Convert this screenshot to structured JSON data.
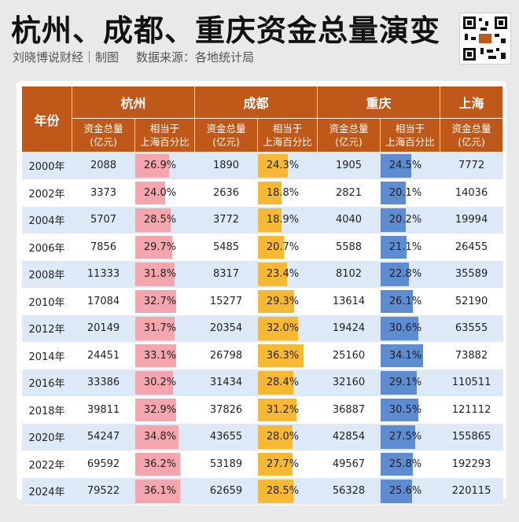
{
  "header": {
    "title": "杭州、成都、重庆资金总量演变",
    "source_author": "刘晓博说财经｜制图",
    "source": "数据来源：各地统计局"
  },
  "table": {
    "col_year": "年份",
    "cities": [
      "杭州",
      "成都",
      "重庆",
      "上海"
    ],
    "sub_value": "资金总量\n(亿元)",
    "sub_pct": "相当于\n上海百分比"
  },
  "colors": {
    "header": "#c0581a",
    "hangzhou": "#f3a6ad",
    "chengdu": "#f7b834",
    "chongqing": "#5d8cd0",
    "row_alt": "#dde9f7"
  },
  "chart_data": {
    "type": "table",
    "title": "杭州、成都、重庆资金总量演变",
    "rows": [
      {
        "year": "2000年",
        "hz": 2088,
        "hz_pct": "26.9%",
        "cd": 1890,
        "cd_pct": "24.3%",
        "cq": 1905,
        "cq_pct": "24.5%",
        "sh": 7772
      },
      {
        "year": "2002年",
        "hz": 3373,
        "hz_pct": "24.0%",
        "cd": 2636,
        "cd_pct": "18.8%",
        "cq": 2821,
        "cq_pct": "20.1%",
        "sh": 14036
      },
      {
        "year": "2004年",
        "hz": 5707,
        "hz_pct": "28.5%",
        "cd": 3772,
        "cd_pct": "18.9%",
        "cq": 4040,
        "cq_pct": "20.2%",
        "sh": 19994
      },
      {
        "year": "2006年",
        "hz": 7856,
        "hz_pct": "29.7%",
        "cd": 5485,
        "cd_pct": "20.7%",
        "cq": 5588,
        "cq_pct": "21.1%",
        "sh": 26455
      },
      {
        "year": "2008年",
        "hz": 11333,
        "hz_pct": "31.8%",
        "cd": 8317,
        "cd_pct": "23.4%",
        "cq": 8102,
        "cq_pct": "22.8%",
        "sh": 35589
      },
      {
        "year": "2010年",
        "hz": 17084,
        "hz_pct": "32.7%",
        "cd": 15277,
        "cd_pct": "29.3%",
        "cq": 13614,
        "cq_pct": "26.1%",
        "sh": 52190
      },
      {
        "year": "2012年",
        "hz": 20149,
        "hz_pct": "31.7%",
        "cd": 20354,
        "cd_pct": "32.0%",
        "cq": 19424,
        "cq_pct": "30.6%",
        "sh": 63555
      },
      {
        "year": "2014年",
        "hz": 24451,
        "hz_pct": "33.1%",
        "cd": 26798,
        "cd_pct": "36.3%",
        "cq": 25160,
        "cq_pct": "34.1%",
        "sh": 73882
      },
      {
        "year": "2016年",
        "hz": 33386,
        "hz_pct": "30.2%",
        "cd": 31434,
        "cd_pct": "28.4%",
        "cq": 32160,
        "cq_pct": "29.1%",
        "sh": 110511
      },
      {
        "year": "2018年",
        "hz": 39811,
        "hz_pct": "32.9%",
        "cd": 37826,
        "cd_pct": "31.2%",
        "cq": 36887,
        "cq_pct": "30.5%",
        "sh": 121112
      },
      {
        "year": "2020年",
        "hz": 54247,
        "hz_pct": "34.8%",
        "cd": 43655,
        "cd_pct": "28.0%",
        "cq": 42854,
        "cq_pct": "27.5%",
        "sh": 155865
      },
      {
        "year": "2022年",
        "hz": 69592,
        "hz_pct": "36.2%",
        "cd": 53189,
        "cd_pct": "27.7%",
        "cq": 49567,
        "cq_pct": "25.8%",
        "sh": 192293
      },
      {
        "year": "2024年",
        "hz": 79522,
        "hz_pct": "36.1%",
        "cd": 62659,
        "cd_pct": "28.5%",
        "cq": 56328,
        "cq_pct": "25.6%",
        "sh": 220115
      }
    ]
  }
}
